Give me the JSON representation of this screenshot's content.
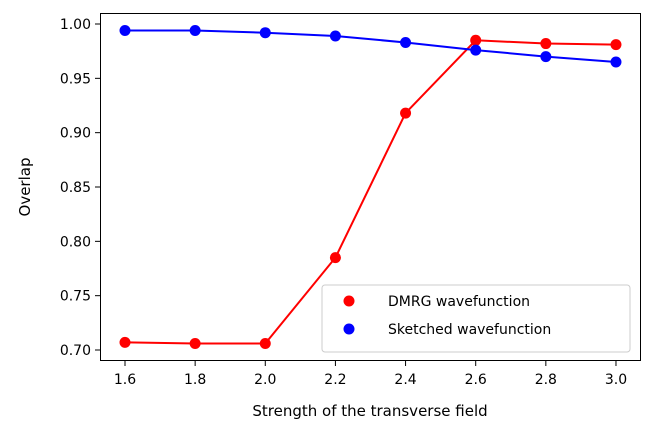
{
  "chart_data": {
    "type": "line",
    "title": "",
    "xlabel": "Strength of the transverse field",
    "ylabel": "Overlap",
    "xlim": [
      1.53,
      3.07
    ],
    "ylim": [
      0.69,
      1.01
    ],
    "xticks": [
      "1.6",
      "1.8",
      "2.0",
      "2.2",
      "2.4",
      "2.6",
      "2.8",
      "3.0"
    ],
    "yticks": [
      "0.70",
      "0.75",
      "0.80",
      "0.85",
      "0.90",
      "0.95",
      "1.00"
    ],
    "grid": false,
    "legend_position": "lower-right",
    "x": [
      1.6,
      1.8,
      2.0,
      2.2,
      2.4,
      2.6,
      2.8,
      3.0
    ],
    "series": [
      {
        "name": "DMRG wavefunction",
        "color": "#ff0000",
        "values": [
          0.707,
          0.706,
          0.706,
          0.785,
          0.918,
          0.985,
          0.982,
          0.981
        ]
      },
      {
        "name": "Sketched wavefunction",
        "color": "#0000ff",
        "values": [
          0.994,
          0.994,
          0.992,
          0.989,
          0.983,
          0.976,
          0.97,
          0.965
        ]
      }
    ]
  }
}
